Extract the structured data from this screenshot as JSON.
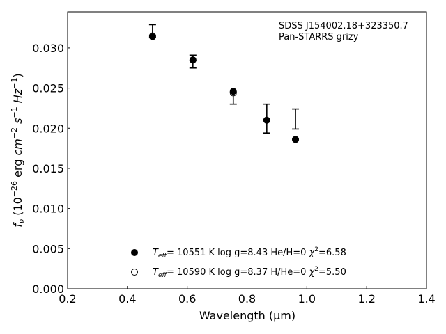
{
  "chart_data": {
    "type": "scatter",
    "title": "",
    "xlabel": "Wavelength (μm)",
    "ylabel_parts": {
      "prefix": "f",
      "sub": "ν",
      "open": " (10",
      "exp1": "−26",
      "mid1": " erg ",
      "cm": "cm",
      "exp2": "−2",
      "mid2": " ",
      "s": "s",
      "exp3": "−1",
      "mid3": " ",
      "hz": "Hz",
      "exp4": "−1",
      "close": ")"
    },
    "xlim": [
      0.2,
      1.4
    ],
    "ylim": [
      0.0,
      0.0345
    ],
    "xticks": [
      0.2,
      0.4,
      0.6,
      0.8,
      1.0,
      1.2,
      1.4
    ],
    "yticks": [
      0.0,
      0.005,
      0.01,
      0.015,
      0.02,
      0.025,
      0.03
    ],
    "xtick_labels": [
      "0.2",
      "0.4",
      "0.6",
      "0.8",
      "1.0",
      "1.2",
      "1.4"
    ],
    "ytick_labels": [
      "0.000",
      "0.005",
      "0.010",
      "0.015",
      "0.020",
      "0.025",
      "0.030"
    ],
    "grid": false,
    "annotations": [
      "SDSS J154002.18+323350.7",
      "Pan-STARRS grizy"
    ],
    "observed": {
      "x": [
        0.484,
        0.619,
        0.754,
        0.866,
        0.962
      ],
      "y": [
        0.0319,
        0.0283,
        0.024,
        0.0212,
        0.0211
      ],
      "yerr_low": [
        0.0313,
        0.0275,
        0.023,
        0.0194,
        0.0199
      ],
      "yerr_high": [
        0.0329,
        0.0291,
        0.0245,
        0.023,
        0.0224
      ],
      "show_marker": [
        false,
        false,
        false,
        false,
        false
      ]
    },
    "series": [
      {
        "marker": "filled-circle",
        "x": [
          0.484,
          0.619,
          0.754,
          0.866,
          0.962
        ],
        "y": [
          0.0314,
          0.0285,
          0.0246,
          0.021,
          0.0186
        ],
        "legend": {
          "teff_T": "T",
          "teff_sub": "eff",
          "teff_rest": "= 10551 K  log g=8.43  He/H=0  ",
          "chi": "χ",
          "chi_sup": "2",
          "chi_rest": "=6.58"
        }
      },
      {
        "marker": "open-circle",
        "x": [
          0.484,
          0.619,
          0.754,
          0.866,
          0.962
        ],
        "y": [
          0.0315,
          0.0285,
          0.0244,
          0.021,
          0.0186
        ],
        "legend": {
          "teff_T": "T",
          "teff_sub": "eff",
          "teff_rest": "= 10590 K  log g=8.37  H/He=0  ",
          "chi": "χ",
          "chi_sup": "2",
          "chi_rest": "=5.50"
        }
      }
    ],
    "legend_placement": "lower-center"
  }
}
